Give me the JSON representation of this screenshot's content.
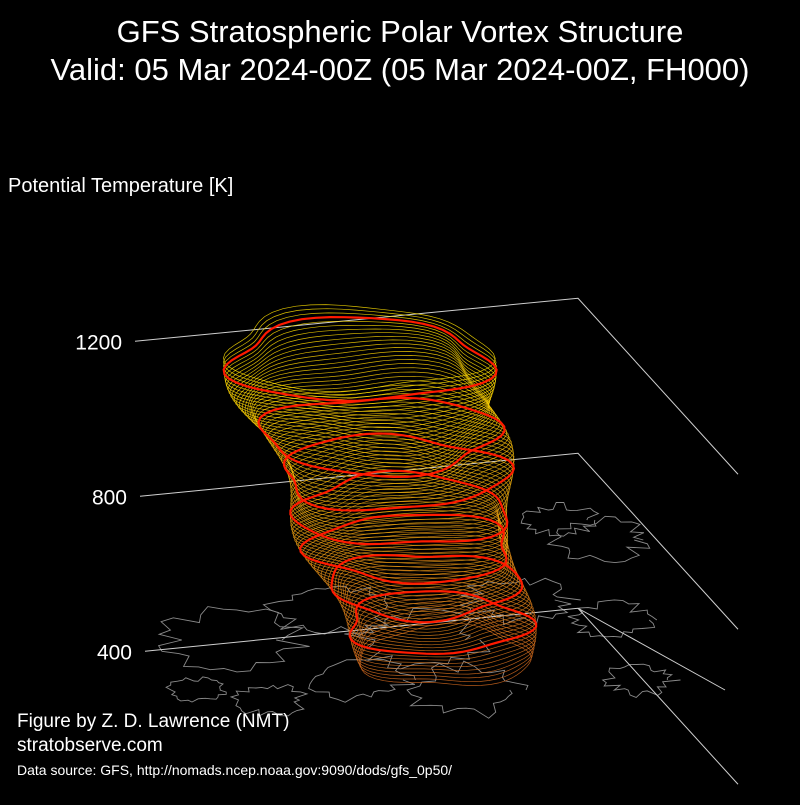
{
  "title": {
    "line1": "GFS Stratospheric Polar Vortex Structure",
    "line2": "Valid: 05 Mar 2024-00Z  (05 Mar 2024-00Z, FH000)"
  },
  "credits": {
    "author": "Figure by Z. D. Lawrence (NMT)",
    "site": "stratobserve.com",
    "source": "Data source: GFS, http://nomads.ncep.noaa.gov:9090/dods/gfs_0p50/"
  },
  "colors": {
    "background": "#000000",
    "axis": "#cfcfcf",
    "coastline": "#8a8a8a",
    "highlight_contour": "#ff1a00",
    "low_levels": "#d2691e",
    "high_levels": "#ffe000"
  },
  "chart_data": {
    "type": "3d-isosurface",
    "z_axis": {
      "label": "Potential Temperature [K]",
      "ticks": [
        400,
        800,
        1200
      ],
      "range": [
        350,
        1200
      ]
    },
    "highlighted_levels_K": [
      450,
      550,
      650,
      750,
      850,
      950,
      1150
    ],
    "grid": true
  }
}
